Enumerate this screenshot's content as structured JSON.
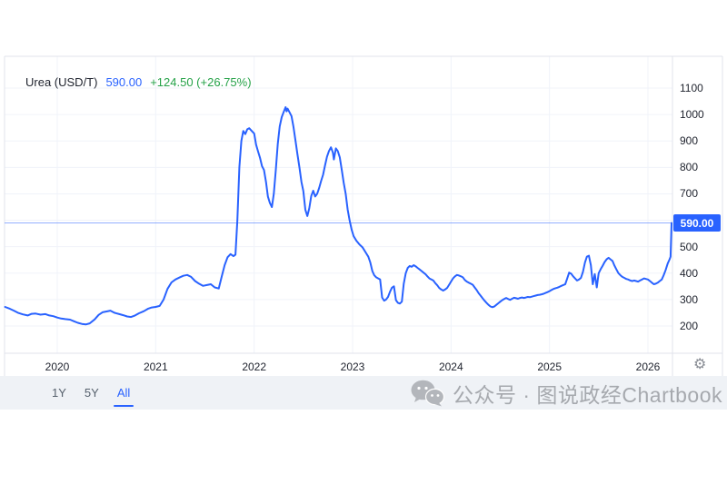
{
  "legend": {
    "symbol": "Urea (USD/T)",
    "price": "590.00",
    "change": "+124.50 (+26.75%)"
  },
  "toolbar": {
    "ranges": [
      {
        "label": "1Y",
        "active": false
      },
      {
        "label": "5Y",
        "active": false
      },
      {
        "label": "All",
        "active": true
      }
    ]
  },
  "watermark": {
    "text": "公众号 · 图说政经Chartbook",
    "icon": "wechat"
  },
  "icons": {
    "settings_glyph": "⚙"
  },
  "colors": {
    "line": "#2962ff",
    "badge": "#2962ff",
    "positive": "#26a248",
    "grid": "#f0f3fa",
    "border": "#e0e3eb",
    "axis_text": "#1e222d",
    "toolbar_bg": "#eff2f6",
    "watermark_text": "#a6a9ae"
  },
  "chart_data": {
    "type": "line",
    "title": "Urea (USD/T)",
    "x_unit": "decimal_year",
    "x_ticks": [
      2020,
      2021,
      2022,
      2023,
      2024,
      2025,
      2026
    ],
    "y_ticks": [
      1100,
      1000,
      900,
      800,
      700,
      500,
      400,
      300,
      200
    ],
    "y_gridlines": [
      200,
      300,
      400,
      500,
      600,
      700,
      800,
      900,
      1000,
      1100
    ],
    "xlim": [
      2019.46,
      2026.25
    ],
    "ylim": [
      97,
      1220
    ],
    "grid": true,
    "legend_position": "top-left",
    "current_price": 590.0,
    "current_price_label": "590.00",
    "change_abs": "+124.50",
    "change_pct": "+26.75%",
    "series": [
      {
        "name": "Urea (USD/T)",
        "points": [
          [
            2019.47,
            272
          ],
          [
            2019.52,
            265
          ],
          [
            2019.56,
            258
          ],
          [
            2019.6,
            250
          ],
          [
            2019.65,
            244
          ],
          [
            2019.7,
            240
          ],
          [
            2019.74,
            246
          ],
          [
            2019.78,
            247
          ],
          [
            2019.83,
            243
          ],
          [
            2019.88,
            245
          ],
          [
            2019.92,
            240
          ],
          [
            2019.96,
            237
          ],
          [
            2020.0,
            232
          ],
          [
            2020.04,
            228
          ],
          [
            2020.08,
            226
          ],
          [
            2020.13,
            224
          ],
          [
            2020.17,
            218
          ],
          [
            2020.21,
            212
          ],
          [
            2020.25,
            208
          ],
          [
            2020.29,
            206
          ],
          [
            2020.33,
            210
          ],
          [
            2020.38,
            225
          ],
          [
            2020.42,
            242
          ],
          [
            2020.46,
            252
          ],
          [
            2020.5,
            255
          ],
          [
            2020.54,
            258
          ],
          [
            2020.58,
            250
          ],
          [
            2020.63,
            245
          ],
          [
            2020.67,
            241
          ],
          [
            2020.71,
            236
          ],
          [
            2020.75,
            234
          ],
          [
            2020.79,
            240
          ],
          [
            2020.83,
            248
          ],
          [
            2020.88,
            256
          ],
          [
            2020.92,
            265
          ],
          [
            2020.96,
            270
          ],
          [
            2021.0,
            272
          ],
          [
            2021.04,
            276
          ],
          [
            2021.08,
            300
          ],
          [
            2021.12,
            340
          ],
          [
            2021.16,
            365
          ],
          [
            2021.2,
            376
          ],
          [
            2021.24,
            383
          ],
          [
            2021.28,
            390
          ],
          [
            2021.32,
            393
          ],
          [
            2021.36,
            386
          ],
          [
            2021.4,
            370
          ],
          [
            2021.44,
            360
          ],
          [
            2021.48,
            352
          ],
          [
            2021.52,
            355
          ],
          [
            2021.56,
            358
          ],
          [
            2021.6,
            346
          ],
          [
            2021.64,
            342
          ],
          [
            2021.67,
            386
          ],
          [
            2021.7,
            430
          ],
          [
            2021.73,
            460
          ],
          [
            2021.76,
            472
          ],
          [
            2021.79,
            464
          ],
          [
            2021.81,
            470
          ],
          [
            2021.83,
            600
          ],
          [
            2021.85,
            800
          ],
          [
            2021.87,
            900
          ],
          [
            2021.89,
            938
          ],
          [
            2021.91,
            926
          ],
          [
            2021.93,
            944
          ],
          [
            2021.95,
            948
          ],
          [
            2021.97,
            940
          ],
          [
            2022.0,
            928
          ],
          [
            2022.02,
            886
          ],
          [
            2022.04,
            860
          ],
          [
            2022.06,
            835
          ],
          [
            2022.08,
            805
          ],
          [
            2022.1,
            790
          ],
          [
            2022.12,
            745
          ],
          [
            2022.14,
            690
          ],
          [
            2022.16,
            665
          ],
          [
            2022.18,
            650
          ],
          [
            2022.2,
            700
          ],
          [
            2022.22,
            790
          ],
          [
            2022.24,
            890
          ],
          [
            2022.26,
            955
          ],
          [
            2022.28,
            990
          ],
          [
            2022.3,
            1010
          ],
          [
            2022.32,
            1028
          ],
          [
            2022.33,
            1012
          ],
          [
            2022.34,
            1022
          ],
          [
            2022.36,
            1008
          ],
          [
            2022.38,
            994
          ],
          [
            2022.4,
            952
          ],
          [
            2022.42,
            900
          ],
          [
            2022.44,
            850
          ],
          [
            2022.46,
            800
          ],
          [
            2022.48,
            745
          ],
          [
            2022.5,
            710
          ],
          [
            2022.52,
            640
          ],
          [
            2022.54,
            616
          ],
          [
            2022.56,
            645
          ],
          [
            2022.58,
            692
          ],
          [
            2022.6,
            712
          ],
          [
            2022.62,
            690
          ],
          [
            2022.64,
            700
          ],
          [
            2022.66,
            722
          ],
          [
            2022.68,
            748
          ],
          [
            2022.7,
            772
          ],
          [
            2022.72,
            808
          ],
          [
            2022.74,
            840
          ],
          [
            2022.76,
            862
          ],
          [
            2022.78,
            876
          ],
          [
            2022.8,
            856
          ],
          [
            2022.81,
            830
          ],
          [
            2022.83,
            872
          ],
          [
            2022.85,
            862
          ],
          [
            2022.87,
            838
          ],
          [
            2022.89,
            790
          ],
          [
            2022.91,
            742
          ],
          [
            2022.93,
            700
          ],
          [
            2022.95,
            640
          ],
          [
            2022.97,
            600
          ],
          [
            2022.99,
            565
          ],
          [
            2023.01,
            540
          ],
          [
            2023.04,
            522
          ],
          [
            2023.07,
            508
          ],
          [
            2023.1,
            498
          ],
          [
            2023.13,
            480
          ],
          [
            2023.16,
            462
          ],
          [
            2023.18,
            440
          ],
          [
            2023.2,
            408
          ],
          [
            2023.22,
            392
          ],
          [
            2023.24,
            384
          ],
          [
            2023.26,
            380
          ],
          [
            2023.28,
            376
          ],
          [
            2023.3,
            308
          ],
          [
            2023.32,
            296
          ],
          [
            2023.34,
            300
          ],
          [
            2023.36,
            310
          ],
          [
            2023.38,
            330
          ],
          [
            2023.4,
            345
          ],
          [
            2023.42,
            350
          ],
          [
            2023.44,
            298
          ],
          [
            2023.46,
            288
          ],
          [
            2023.48,
            285
          ],
          [
            2023.5,
            292
          ],
          [
            2023.52,
            360
          ],
          [
            2023.54,
            400
          ],
          [
            2023.56,
            420
          ],
          [
            2023.58,
            427
          ],
          [
            2023.6,
            424
          ],
          [
            2023.62,
            430
          ],
          [
            2023.64,
            426
          ],
          [
            2023.66,
            420
          ],
          [
            2023.68,
            414
          ],
          [
            2023.7,
            408
          ],
          [
            2023.72,
            402
          ],
          [
            2023.74,
            396
          ],
          [
            2023.76,
            388
          ],
          [
            2023.78,
            380
          ],
          [
            2023.8,
            376
          ],
          [
            2023.82,
            372
          ],
          [
            2023.84,
            362
          ],
          [
            2023.86,
            354
          ],
          [
            2023.88,
            344
          ],
          [
            2023.9,
            338
          ],
          [
            2023.92,
            334
          ],
          [
            2023.94,
            338
          ],
          [
            2023.96,
            344
          ],
          [
            2023.98,
            356
          ],
          [
            2024.0,
            368
          ],
          [
            2024.02,
            380
          ],
          [
            2024.04,
            388
          ],
          [
            2024.06,
            393
          ],
          [
            2024.08,
            391
          ],
          [
            2024.1,
            388
          ],
          [
            2024.12,
            384
          ],
          [
            2024.14,
            374
          ],
          [
            2024.16,
            368
          ],
          [
            2024.18,
            364
          ],
          [
            2024.2,
            360
          ],
          [
            2024.22,
            356
          ],
          [
            2024.24,
            346
          ],
          [
            2024.26,
            336
          ],
          [
            2024.28,
            324
          ],
          [
            2024.3,
            315
          ],
          [
            2024.32,
            305
          ],
          [
            2024.34,
            296
          ],
          [
            2024.36,
            288
          ],
          [
            2024.38,
            280
          ],
          [
            2024.4,
            274
          ],
          [
            2024.42,
            271
          ],
          [
            2024.44,
            274
          ],
          [
            2024.46,
            280
          ],
          [
            2024.48,
            286
          ],
          [
            2024.5,
            292
          ],
          [
            2024.52,
            298
          ],
          [
            2024.54,
            302
          ],
          [
            2024.56,
            306
          ],
          [
            2024.58,
            302
          ],
          [
            2024.6,
            299
          ],
          [
            2024.62,
            303
          ],
          [
            2024.64,
            307
          ],
          [
            2024.66,
            305
          ],
          [
            2024.68,
            303
          ],
          [
            2024.7,
            306
          ],
          [
            2024.72,
            308
          ],
          [
            2024.74,
            306
          ],
          [
            2024.76,
            308
          ],
          [
            2024.78,
            310
          ],
          [
            2024.8,
            309
          ],
          [
            2024.82,
            311
          ],
          [
            2024.84,
            313
          ],
          [
            2024.86,
            315
          ],
          [
            2024.88,
            317
          ],
          [
            2024.9,
            318
          ],
          [
            2024.92,
            320
          ],
          [
            2024.94,
            322
          ],
          [
            2024.96,
            325
          ],
          [
            2024.98,
            328
          ],
          [
            2025.0,
            332
          ],
          [
            2025.02,
            336
          ],
          [
            2025.04,
            340
          ],
          [
            2025.06,
            343
          ],
          [
            2025.08,
            345
          ],
          [
            2025.1,
            348
          ],
          [
            2025.12,
            352
          ],
          [
            2025.14,
            355
          ],
          [
            2025.16,
            358
          ],
          [
            2025.18,
            380
          ],
          [
            2025.2,
            402
          ],
          [
            2025.22,
            398
          ],
          [
            2025.24,
            388
          ],
          [
            2025.26,
            380
          ],
          [
            2025.28,
            372
          ],
          [
            2025.3,
            376
          ],
          [
            2025.32,
            382
          ],
          [
            2025.34,
            405
          ],
          [
            2025.36,
            440
          ],
          [
            2025.38,
            462
          ],
          [
            2025.4,
            466
          ],
          [
            2025.42,
            430
          ],
          [
            2025.44,
            358
          ],
          [
            2025.46,
            396
          ],
          [
            2025.48,
            346
          ],
          [
            2025.5,
            400
          ],
          [
            2025.52,
            415
          ],
          [
            2025.54,
            428
          ],
          [
            2025.56,
            442
          ],
          [
            2025.58,
            452
          ],
          [
            2025.6,
            458
          ],
          [
            2025.62,
            452
          ],
          [
            2025.64,
            446
          ],
          [
            2025.66,
            428
          ],
          [
            2025.68,
            414
          ],
          [
            2025.7,
            400
          ],
          [
            2025.72,
            392
          ],
          [
            2025.74,
            386
          ],
          [
            2025.76,
            382
          ],
          [
            2025.78,
            378
          ],
          [
            2025.8,
            376
          ],
          [
            2025.82,
            372
          ],
          [
            2025.84,
            370
          ],
          [
            2025.86,
            372
          ],
          [
            2025.88,
            370
          ],
          [
            2025.9,
            368
          ],
          [
            2025.92,
            372
          ],
          [
            2025.94,
            376
          ],
          [
            2025.96,
            380
          ],
          [
            2025.98,
            378
          ],
          [
            2026.0,
            376
          ],
          [
            2026.02,
            370
          ],
          [
            2026.04,
            364
          ],
          [
            2026.06,
            358
          ],
          [
            2026.08,
            360
          ],
          [
            2026.1,
            364
          ],
          [
            2026.12,
            370
          ],
          [
            2026.14,
            376
          ],
          [
            2026.16,
            392
          ],
          [
            2026.18,
            412
          ],
          [
            2026.2,
            436
          ],
          [
            2026.22,
            452
          ],
          [
            2026.23,
            462
          ],
          [
            2026.24,
            590
          ]
        ]
      }
    ]
  }
}
